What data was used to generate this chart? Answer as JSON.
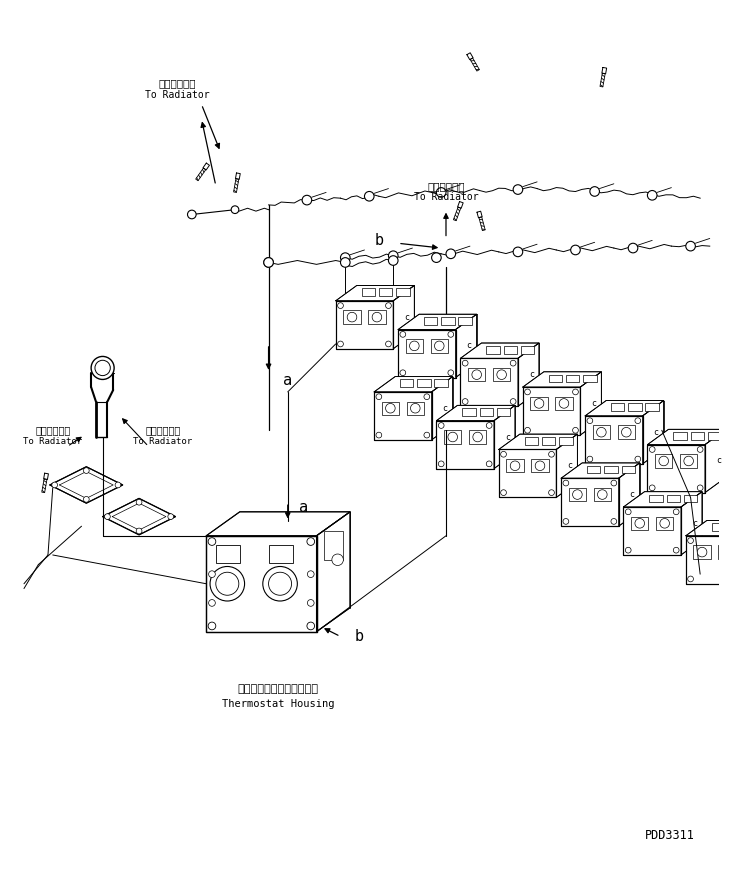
{
  "bg_color": "#ffffff",
  "fig_width": 7.5,
  "fig_height": 8.74,
  "dpi": 100,
  "watermark": "PDD3311",
  "radiator_jp": "ラジェータへ",
  "radiator_en": "To Radiator",
  "thermostat_jp": "サーモスタットハウジング",
  "thermostat_en": "Thermostat Housing"
}
